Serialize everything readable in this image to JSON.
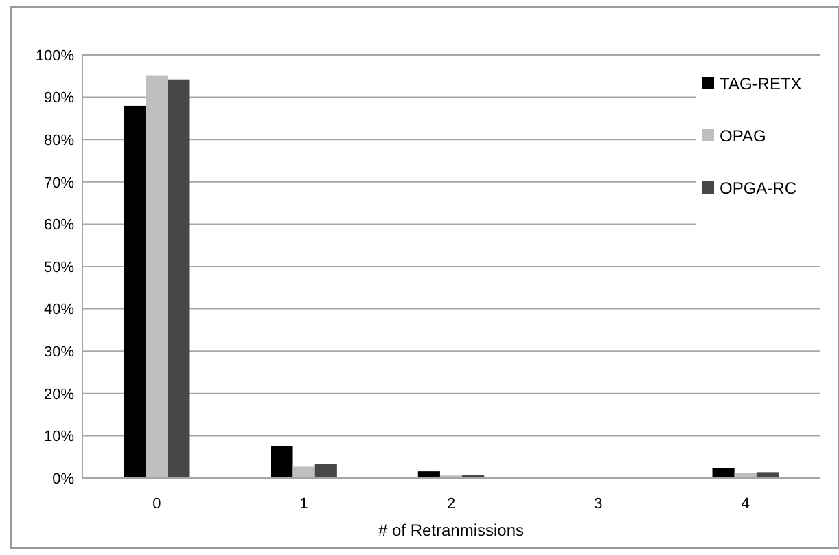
{
  "chart_data": {
    "type": "bar",
    "xlabel": "# of Retranmissions",
    "categories": [
      "0",
      "1",
      "2",
      "3",
      "4"
    ],
    "series": [
      {
        "name": "TAG-RETX",
        "color": "#000000",
        "values": [
          88,
          7.6,
          1.6,
          null,
          2.3
        ]
      },
      {
        "name": "OPAG",
        "color": "#bfbfbf",
        "values": [
          95.2,
          2.7,
          0.6,
          null,
          1.2
        ]
      },
      {
        "name": "OPGA-RC",
        "color": "#474747",
        "values": [
          94.2,
          3.3,
          0.8,
          null,
          1.4
        ]
      }
    ],
    "ylim": [
      0,
      100
    ],
    "yticks": [
      {
        "value": 0,
        "label": "0%"
      },
      {
        "value": 10,
        "label": "10%"
      },
      {
        "value": 20,
        "label": "20%"
      },
      {
        "value": 30,
        "label": "30%"
      },
      {
        "value": 40,
        "label": "40%"
      },
      {
        "value": 50,
        "label": "50%"
      },
      {
        "value": 60,
        "label": "60%"
      },
      {
        "value": 70,
        "label": "70%"
      },
      {
        "value": 80,
        "label": "80%"
      },
      {
        "value": 90,
        "label": "90%"
      },
      {
        "value": 100,
        "label": "100%"
      }
    ],
    "grid": "y",
    "legend": "top right"
  }
}
